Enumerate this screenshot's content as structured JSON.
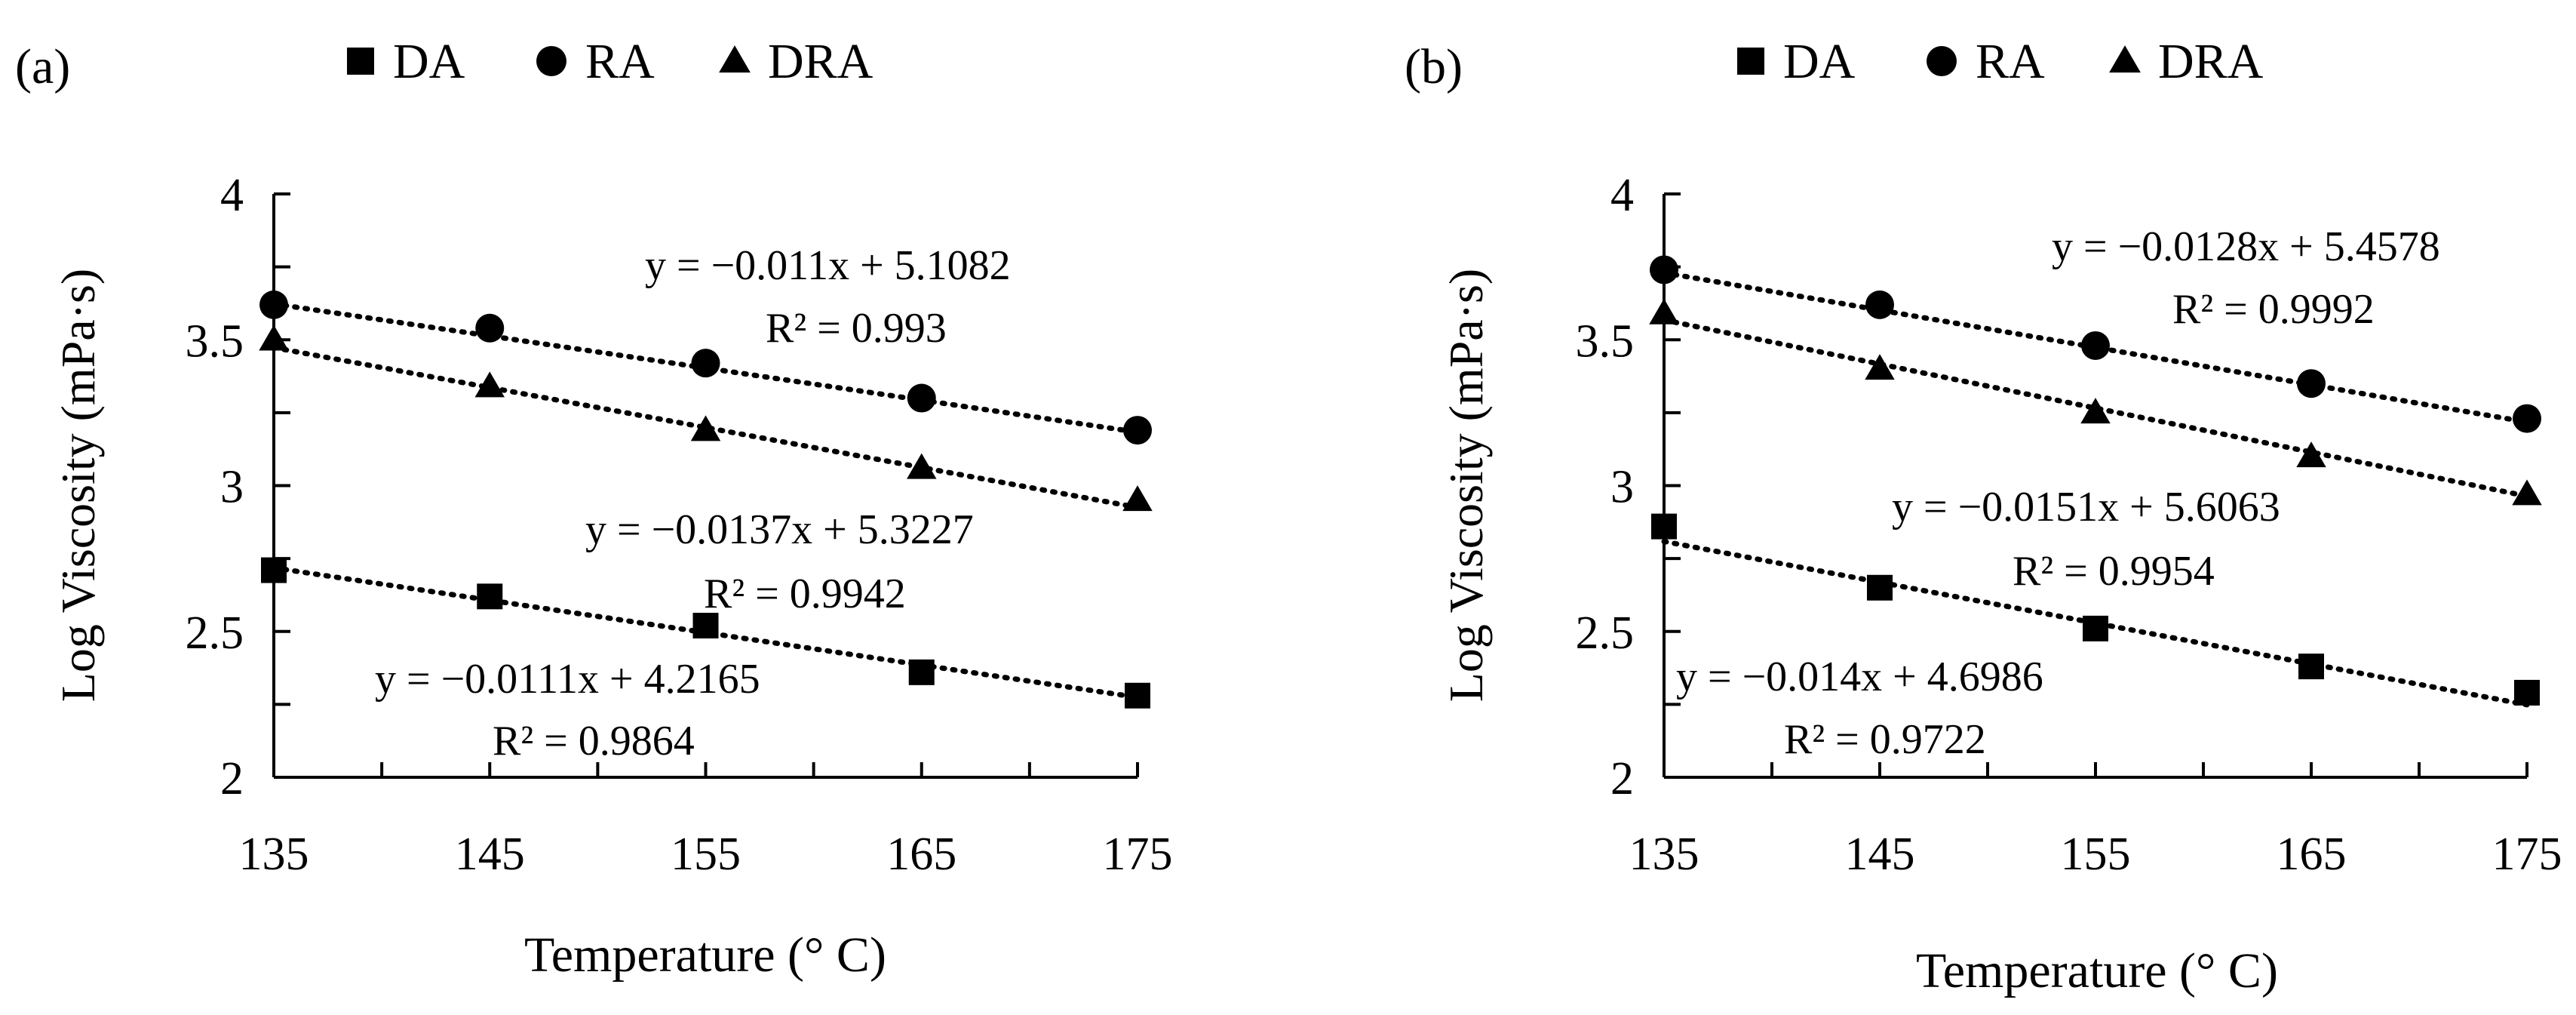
{
  "chart_data": [
    {
      "panel_label": "(a)",
      "type": "scatter",
      "xlabel": "Temperature (° C)",
      "ylabel": "Log Viscosity (mPa·s)",
      "xlim": [
        135,
        175
      ],
      "ylim": [
        2,
        4
      ],
      "x_ticks": [
        "135",
        "145",
        "155",
        "165",
        "175"
      ],
      "y_ticks": [
        "2",
        "2.5",
        "3",
        "3.5",
        "4"
      ],
      "legend": [
        {
          "name": "DA",
          "marker": "square"
        },
        {
          "name": "RA",
          "marker": "circle"
        },
        {
          "name": "DRA",
          "marker": "triangle"
        }
      ],
      "series": [
        {
          "name": "DA",
          "marker": "square",
          "x": [
            135,
            145,
            155,
            165,
            175
          ],
          "y": [
            2.71,
            2.62,
            2.52,
            2.36,
            2.28
          ],
          "trendline": {
            "slope": -0.0111,
            "intercept": 4.2165
          },
          "equation": "y = −0.0111x + 4.2165",
          "r2": "R² = 0.9864"
        },
        {
          "name": "RA",
          "marker": "circle",
          "x": [
            135,
            145,
            155,
            165,
            175
          ],
          "y": [
            3.62,
            3.54,
            3.42,
            3.3,
            3.19
          ],
          "trendline": {
            "slope": -0.011,
            "intercept": 5.1082
          },
          "equation": "y = −0.011x + 5.1082",
          "r2": "R² = 0.993"
        },
        {
          "name": "DRA",
          "marker": "triangle",
          "x": [
            135,
            145,
            155,
            165,
            175
          ],
          "y": [
            3.5,
            3.34,
            3.19,
            3.06,
            2.95
          ],
          "trendline": {
            "slope": -0.0137,
            "intercept": 5.3227
          },
          "equation": "y = −0.0137x + 5.3227",
          "r2": "R² = 0.9942"
        }
      ]
    },
    {
      "panel_label": "(b)",
      "type": "scatter",
      "xlabel": "Temperature (° C)",
      "ylabel": "Log Viscosity (mPa·s)",
      "xlim": [
        135,
        175
      ],
      "ylim": [
        2,
        4
      ],
      "x_ticks": [
        "135",
        "145",
        "155",
        "165",
        "175"
      ],
      "y_ticks": [
        "2",
        "2.5",
        "3",
        "3.5",
        "4"
      ],
      "legend": [
        {
          "name": "DA",
          "marker": "square"
        },
        {
          "name": "RA",
          "marker": "circle"
        },
        {
          "name": "DRA",
          "marker": "triangle"
        }
      ],
      "series": [
        {
          "name": "DA",
          "marker": "square",
          "x": [
            135,
            145,
            155,
            165,
            175
          ],
          "y": [
            2.86,
            2.65,
            2.51,
            2.38,
            2.29
          ],
          "trendline": {
            "slope": -0.014,
            "intercept": 4.6986
          },
          "equation": "y = −0.014x + 4.6986",
          "r2": "R² = 0.9722"
        },
        {
          "name": "RA",
          "marker": "circle",
          "x": [
            135,
            145,
            155,
            165,
            175
          ],
          "y": [
            3.74,
            3.62,
            3.48,
            3.35,
            3.23
          ],
          "trendline": {
            "slope": -0.0128,
            "intercept": 5.4578
          },
          "equation": "y = −0.0128x + 5.4578",
          "r2": "R² = 0.9992"
        },
        {
          "name": "DRA",
          "marker": "triangle",
          "x": [
            135,
            145,
            155,
            165,
            175
          ],
          "y": [
            3.59,
            3.4,
            3.25,
            3.1,
            2.97
          ],
          "trendline": {
            "slope": -0.0151,
            "intercept": 5.6063
          },
          "equation": "y = −0.0151x + 5.6063",
          "r2": "R² = 0.9954"
        }
      ]
    }
  ]
}
